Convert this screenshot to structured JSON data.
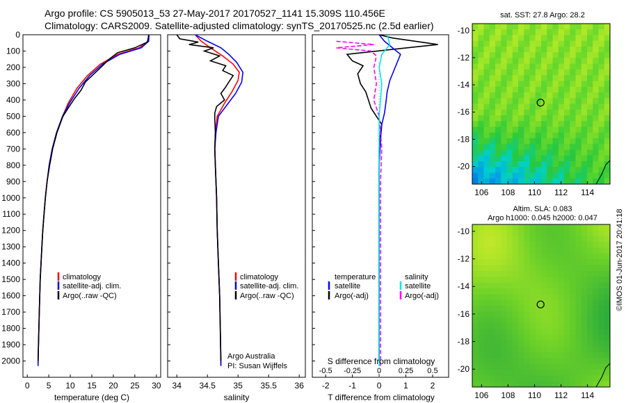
{
  "header": {
    "line1": "Argo profile: CS 5905013_53 27-May-2017 20170527_1141 15.309S 110.456E",
    "line2": "Climatology: CARS2009. Satellite-adjusted climatology: synTS_20170525.nc (2.5d earlier)"
  },
  "chart_data": [
    {
      "type": "line",
      "name": "temperature-profile",
      "xlabel": "temperature (deg C)",
      "xlim": [
        -1,
        31
      ],
      "ylim": [
        2100,
        0
      ],
      "x_ticks": [
        "0",
        "5",
        "10",
        "15",
        "20",
        "25",
        "30"
      ],
      "y_ticks": [
        "0",
        "100",
        "200",
        "300",
        "400",
        "500",
        "600",
        "700",
        "800",
        "900",
        "1000",
        "1100",
        "1200",
        "1300",
        "1400",
        "1500",
        "1600",
        "1700",
        "1800",
        "1900",
        "2000"
      ],
      "legend": [
        {
          "label": "climatology",
          "color": "#ff0000"
        },
        {
          "label": "satellite-adj. clim.",
          "color": "#0000ff"
        },
        {
          "label": "Argo(..raw -QC)",
          "color": "#000000"
        }
      ],
      "series": [
        {
          "color": "#ff0000",
          "points": [
            [
              28.3,
              0
            ],
            [
              28.1,
              40
            ],
            [
              26,
              80
            ],
            [
              21,
              120
            ],
            [
              17,
              180
            ],
            [
              14,
              250
            ],
            [
              11.5,
              330
            ],
            [
              9.5,
              420
            ],
            [
              8.2,
              500
            ],
            [
              6.8,
              600
            ],
            [
              5.8,
              700
            ],
            [
              5.1,
              800
            ],
            [
              4.6,
              900
            ],
            [
              4.2,
              1000
            ],
            [
              3.9,
              1100
            ],
            [
              3.6,
              1200
            ],
            [
              3.4,
              1300
            ],
            [
              3.2,
              1400
            ],
            [
              3.0,
              1500
            ],
            [
              2.8,
              1700
            ],
            [
              2.6,
              1900
            ],
            [
              2.5,
              2030
            ]
          ]
        },
        {
          "color": "#0000ff",
          "points": [
            [
              28.3,
              0
            ],
            [
              28.2,
              40
            ],
            [
              26.5,
              80
            ],
            [
              21.5,
              120
            ],
            [
              17.5,
              180
            ],
            [
              14.5,
              250
            ],
            [
              12,
              330
            ],
            [
              9.8,
              420
            ],
            [
              8.2,
              500
            ],
            [
              6.8,
              600
            ],
            [
              5.8,
              700
            ],
            [
              5.1,
              800
            ],
            [
              4.6,
              900
            ],
            [
              4.2,
              1000
            ],
            [
              3.9,
              1100
            ],
            [
              3.6,
              1200
            ],
            [
              3.4,
              1300
            ],
            [
              3.2,
              1400
            ],
            [
              3.0,
              1500
            ],
            [
              2.8,
              1700
            ],
            [
              2.6,
              1900
            ],
            [
              2.5,
              2030
            ]
          ]
        },
        {
          "color": "#000000",
          "points": [
            [
              28.2,
              0
            ],
            [
              28.1,
              20
            ],
            [
              27.9,
              45
            ],
            [
              25,
              80
            ],
            [
              21,
              110
            ],
            [
              19,
              150
            ],
            [
              17.5,
              190
            ],
            [
              15.5,
              240
            ],
            [
              13.5,
              290
            ],
            [
              12.5,
              340
            ],
            [
              11,
              390
            ],
            [
              9.5,
              450
            ],
            [
              8.3,
              500
            ],
            [
              6.9,
              600
            ],
            [
              5.9,
              700
            ],
            [
              5.2,
              800
            ],
            [
              4.6,
              900
            ],
            [
              4.2,
              1000
            ],
            [
              3.9,
              1100
            ],
            [
              3.6,
              1200
            ],
            [
              3.4,
              1300
            ],
            [
              3.2,
              1400
            ],
            [
              3.0,
              1500
            ],
            [
              2.8,
              1700
            ],
            [
              2.6,
              1900
            ],
            [
              2.5,
              2000
            ]
          ]
        }
      ]
    },
    {
      "type": "line",
      "name": "salinity-profile",
      "xlabel": "salinity",
      "xlim": [
        33.85,
        36.1
      ],
      "ylim": [
        2100,
        0
      ],
      "x_ticks": [
        "34",
        "34.5",
        "35",
        "35.5",
        "36"
      ],
      "legend": [
        {
          "label": "climatology",
          "color": "#ff0000"
        },
        {
          "label": "satellite-adj. clim.",
          "color": "#0000ff"
        },
        {
          "label": "Argo(..raw -QC)",
          "color": "#000000"
        }
      ],
      "annotations": [
        "Argo Australia",
        "PI: Susan Wijffels"
      ],
      "series": [
        {
          "color": "#ff0000",
          "points": [
            [
              34.3,
              0
            ],
            [
              34.4,
              40
            ],
            [
              34.55,
              80
            ],
            [
              34.75,
              130
            ],
            [
              34.92,
              180
            ],
            [
              35.02,
              230
            ],
            [
              35.0,
              280
            ],
            [
              34.9,
              350
            ],
            [
              34.78,
              420
            ],
            [
              34.66,
              500
            ],
            [
              34.63,
              600
            ],
            [
              34.62,
              700
            ],
            [
              34.63,
              800
            ],
            [
              34.64,
              900
            ],
            [
              34.65,
              1000
            ],
            [
              34.66,
              1200
            ],
            [
              34.68,
              1400
            ],
            [
              34.7,
              1600
            ],
            [
              34.71,
              1800
            ],
            [
              34.72,
              2030
            ]
          ]
        },
        {
          "color": "#0000ff",
          "points": [
            [
              34.3,
              0
            ],
            [
              34.5,
              40
            ],
            [
              34.72,
              80
            ],
            [
              34.85,
              120
            ],
            [
              34.98,
              170
            ],
            [
              35.08,
              230
            ],
            [
              35.06,
              290
            ],
            [
              34.96,
              360
            ],
            [
              34.82,
              430
            ],
            [
              34.68,
              500
            ],
            [
              34.64,
              600
            ],
            [
              34.62,
              700
            ],
            [
              34.63,
              800
            ],
            [
              34.64,
              900
            ],
            [
              34.65,
              1000
            ],
            [
              34.66,
              1200
            ],
            [
              34.68,
              1400
            ],
            [
              34.7,
              1600
            ],
            [
              34.71,
              1800
            ],
            [
              34.72,
              2030
            ]
          ]
        },
        {
          "color": "#000000",
          "points": [
            [
              34.0,
              0
            ],
            [
              34.05,
              25
            ],
            [
              34.35,
              45
            ],
            [
              34.2,
              60
            ],
            [
              34.6,
              80
            ],
            [
              34.45,
              100
            ],
            [
              34.7,
              130
            ],
            [
              34.55,
              160
            ],
            [
              34.8,
              190
            ],
            [
              34.75,
              220
            ],
            [
              34.92,
              250
            ],
            [
              34.85,
              290
            ],
            [
              34.8,
              320
            ],
            [
              34.72,
              360
            ],
            [
              34.78,
              400
            ],
            [
              34.65,
              440
            ],
            [
              34.62,
              480
            ],
            [
              34.62,
              520
            ],
            [
              34.63,
              600
            ],
            [
              34.62,
              700
            ],
            [
              34.63,
              800
            ],
            [
              34.64,
              900
            ],
            [
              34.65,
              1000
            ],
            [
              34.66,
              1200
            ],
            [
              34.68,
              1400
            ],
            [
              34.7,
              1600
            ],
            [
              34.71,
              1800
            ],
            [
              34.72,
              2000
            ]
          ]
        }
      ]
    },
    {
      "type": "line",
      "name": "difference-profile",
      "xlabel": "T difference from climatology",
      "xlabel_top": "S difference from climatology",
      "xlim": [
        -2.5,
        2.6
      ],
      "ylim": [
        2100,
        0
      ],
      "x_ticks": [
        "-2",
        "-1",
        "0",
        "1",
        "2"
      ],
      "x_ticks_top": [
        "-0.5",
        "-0.25",
        "0",
        "0.25",
        "0.5"
      ],
      "legend": [
        {
          "label": "temperature",
          "color": ""
        },
        {
          "label": "satellite",
          "color": "#0000ff"
        },
        {
          "label": "Argo(-adj)",
          "color": "#000000"
        },
        {
          "label": "salinity",
          "color": ""
        },
        {
          "label": "satellite",
          "color": "#00e5ee"
        },
        {
          "label": "Argo(-adj)",
          "color": "#ff00ff"
        }
      ],
      "series": [
        {
          "color": "#000000",
          "points": [
            [
              0,
              0
            ],
            [
              0.5,
              20
            ],
            [
              2.2,
              60
            ],
            [
              0.5,
              90
            ],
            [
              -1.2,
              120
            ],
            [
              -1,
              160
            ],
            [
              -0.6,
              190
            ],
            [
              -0.8,
              240
            ],
            [
              -0.7,
              300
            ],
            [
              -0.5,
              350
            ],
            [
              -0.4,
              400
            ],
            [
              -0.3,
              450
            ],
            [
              -0.1,
              500
            ],
            [
              0.1,
              550
            ],
            [
              0.05,
              600
            ],
            [
              0,
              700
            ],
            [
              0,
              800
            ],
            [
              0,
              1000
            ],
            [
              0,
              1500
            ],
            [
              0,
              2000
            ]
          ]
        },
        {
          "color": "#0000ff",
          "points": [
            [
              0,
              0
            ],
            [
              0.2,
              40
            ],
            [
              0.8,
              120
            ],
            [
              0.6,
              200
            ],
            [
              0.4,
              280
            ],
            [
              0.3,
              350
            ],
            [
              0.25,
              420
            ],
            [
              0.2,
              480
            ],
            [
              0.1,
              550
            ],
            [
              0.05,
              650
            ],
            [
              0,
              800
            ],
            [
              0,
              1000
            ],
            [
              0,
              2000
            ]
          ]
        },
        {
          "color": "#ff00ff",
          "points": [
            [
              -1.6,
              40
            ],
            [
              -0.2,
              60
            ],
            [
              -1.6,
              80
            ],
            [
              -0.3,
              100
            ],
            [
              -0.1,
              130
            ],
            [
              -0.2,
              200
            ],
            [
              -0.1,
              300
            ],
            [
              -0.2,
              400
            ],
            [
              0,
              500
            ],
            [
              0.05,
              600
            ],
            [
              0.1,
              700
            ],
            [
              0.05,
              900
            ],
            [
              0.05,
              1200
            ],
            [
              0.05,
              1500
            ],
            [
              0.05,
              1800
            ],
            [
              0.05,
              2030
            ]
          ]
        },
        {
          "color": "#00e5ee",
          "points": [
            [
              0.3,
              0
            ],
            [
              0.4,
              60
            ],
            [
              0.1,
              120
            ],
            [
              0,
              200
            ],
            [
              0.1,
              300
            ],
            [
              0.05,
              400
            ],
            [
              0,
              500
            ],
            [
              0,
              700
            ],
            [
              0,
              1000
            ],
            [
              0,
              1500
            ],
            [
              0,
              2030
            ]
          ]
        }
      ]
    },
    {
      "type": "heatmap",
      "name": "sst-map",
      "title": "sat. SST: 27.8 Argo: 28.2",
      "x_ticks": [
        "106",
        "108",
        "110",
        "112",
        "114"
      ],
      "y_ticks": [
        "-10",
        "-12",
        "-14",
        "-16",
        "-18",
        "-20"
      ],
      "xlim": [
        105.3,
        115.7
      ],
      "ylim": [
        -9.5,
        -21.3
      ],
      "marker": [
        110.456,
        -15.309
      ]
    },
    {
      "type": "heatmap",
      "name": "sla-map",
      "title": "Altim. SLA: 0.083",
      "subtitle": "Argo h1000: 0.045 h2000: 0.047",
      "x_ticks": [
        "106",
        "108",
        "110",
        "112",
        "114"
      ],
      "y_ticks": [
        "-10",
        "-12",
        "-14",
        "-16",
        "-18",
        "-20"
      ],
      "xlim": [
        105.3,
        115.7
      ],
      "ylim": [
        -9.5,
        -21.3
      ],
      "marker": [
        110.456,
        -15.309
      ]
    }
  ],
  "footer": {
    "credit": "©IMOS 01-Jun-2017 20:41:18"
  },
  "colors": {
    "climatology": "#ff0000",
    "satellite": "#0000ff",
    "argo": "#000000",
    "salinity_satellite": "#00e5ee",
    "salinity_argo": "#ff00ff"
  }
}
